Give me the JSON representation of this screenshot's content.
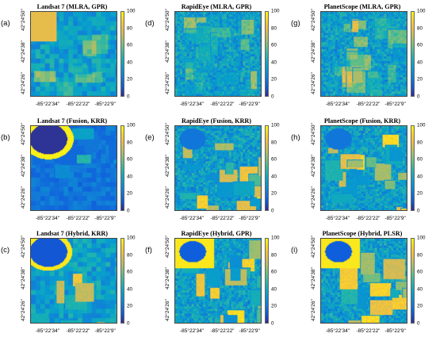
{
  "colorbar_ticks": [
    "100",
    "80",
    "60",
    "40",
    "20",
    "0"
  ],
  "y_ticks": [
    "42°24'50\"",
    "42°24'38\"",
    "42°24'26\""
  ],
  "x_ticks": [
    "-85°22'34\"",
    "-85°22'22\"",
    "-85°22'9\""
  ],
  "colormap": "parula",
  "panels": [
    {
      "letter": "(a)",
      "title": "Landsat 7 (MLRA, GPR)",
      "source": "landsat",
      "mode": "a"
    },
    {
      "letter": "(d)",
      "title": "RapidEye (MLRA, GPR)",
      "source": "rapideye",
      "mode": "mlra"
    },
    {
      "letter": "(g)",
      "title": "PlanetScope (MLRA, GPR)",
      "source": "planet",
      "mode": "mlra"
    },
    {
      "letter": "(b)",
      "title": "Landsat 7 (Fusion, KRR)",
      "source": "landsat",
      "mode": "b"
    },
    {
      "letter": "(e)",
      "title": "RapidEye (Fusion, KRR)",
      "source": "rapideye",
      "mode": "fusion"
    },
    {
      "letter": "(h)",
      "title": "PlanetScope (Fusion, KRR)",
      "source": "planet",
      "mode": "fusion"
    },
    {
      "letter": "(c)",
      "title": "Landsat 7 (Hybrid, KRR)",
      "source": "landsat",
      "mode": "c"
    },
    {
      "letter": "(f)",
      "title": "RapidEye (Hybrid, GPR)",
      "source": "rapideye",
      "mode": "hybrid"
    },
    {
      "letter": "(i)",
      "title": "PlanetScope (Hybrid, PLSR)",
      "source": "planet",
      "mode": "hybrid"
    }
  ]
}
